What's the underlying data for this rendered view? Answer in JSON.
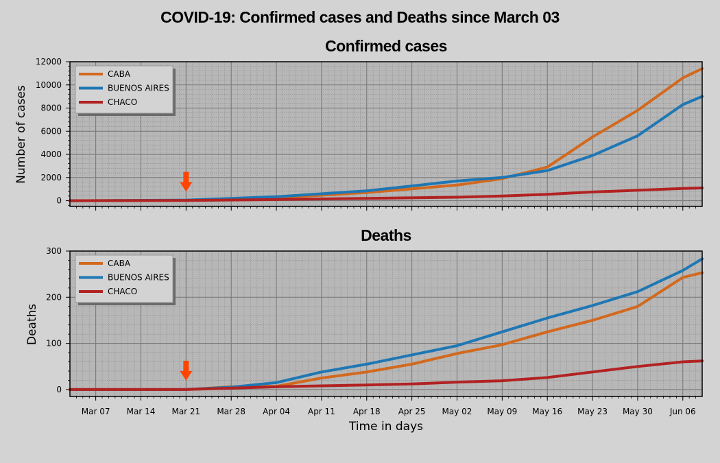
{
  "figure": {
    "title": "COVID-19: Confirmed cases and Deaths since March 03",
    "xlabel": "Time in days",
    "xticks": [
      "Mar 07",
      "Mar 14",
      "Mar 21",
      "Mar 28",
      "Apr 04",
      "Apr 11",
      "Apr 18",
      "Apr 25",
      "May 02",
      "May 09",
      "May 16",
      "May 23",
      "May 30",
      "Jun 06"
    ],
    "marker_date": "Mar 21",
    "marker_color": "#ff4500",
    "grid": true
  },
  "chart_data": [
    {
      "type": "line",
      "title": "Confirmed cases",
      "xlabel": "Time in days",
      "ylabel": "Number of cases",
      "ylim": [
        -500,
        12000
      ],
      "yticks": [
        0,
        2000,
        4000,
        6000,
        8000,
        10000,
        12000
      ],
      "legend": "top-left",
      "x_start": "Mar 03",
      "x_end": "Jun 09",
      "series": [
        {
          "name": "CABA",
          "color": "#d2691e",
          "dates": [
            "Mar 03",
            "Mar 21",
            "Apr 04",
            "Apr 18",
            "May 02",
            "May 09",
            "May 16",
            "May 23",
            "May 30",
            "Jun 06",
            "Jun 09"
          ],
          "values": [
            0,
            40,
            250,
            700,
            1350,
            1900,
            2900,
            5500,
            7800,
            10600,
            11400
          ]
        },
        {
          "name": "BUENOS AIRES",
          "color": "#1f77b4",
          "dates": [
            "Mar 03",
            "Mar 21",
            "Apr 04",
            "Apr 18",
            "May 02",
            "May 09",
            "May 16",
            "May 23",
            "May 30",
            "Jun 06",
            "Jun 09"
          ],
          "values": [
            0,
            50,
            350,
            850,
            1700,
            2000,
            2600,
            3900,
            5600,
            8300,
            9000
          ]
        },
        {
          "name": "CHACO",
          "color": "#b22222",
          "dates": [
            "Mar 03",
            "Mar 21",
            "Apr 04",
            "Apr 18",
            "May 02",
            "May 09",
            "May 16",
            "May 23",
            "May 30",
            "Jun 06",
            "Jun 09"
          ],
          "values": [
            0,
            20,
            100,
            200,
            300,
            400,
            550,
            750,
            900,
            1050,
            1100
          ]
        }
      ]
    },
    {
      "type": "line",
      "title": "Deaths",
      "xlabel": "Time in days",
      "ylabel": "Deaths",
      "ylim": [
        -15,
        300
      ],
      "yticks": [
        0,
        100,
        200,
        300
      ],
      "legend": "top-left",
      "x_start": "Mar 03",
      "x_end": "Jun 09",
      "series": [
        {
          "name": "CABA",
          "color": "#d2691e",
          "dates": [
            "Mar 03",
            "Mar 21",
            "Mar 28",
            "Apr 04",
            "Apr 11",
            "Apr 18",
            "Apr 25",
            "May 02",
            "May 09",
            "May 16",
            "May 23",
            "May 30",
            "Jun 06",
            "Jun 09"
          ],
          "values": [
            0,
            0,
            6,
            7,
            25,
            38,
            55,
            78,
            97,
            125,
            150,
            180,
            243,
            253
          ]
        },
        {
          "name": "BUENOS AIRES",
          "color": "#1f77b4",
          "dates": [
            "Mar 03",
            "Mar 21",
            "Mar 28",
            "Apr 04",
            "Apr 11",
            "Apr 18",
            "Apr 25",
            "May 02",
            "May 09",
            "May 16",
            "May 23",
            "May 30",
            "Jun 06",
            "Jun 09"
          ],
          "values": [
            0,
            0,
            5,
            15,
            38,
            55,
            75,
            95,
            125,
            155,
            182,
            212,
            258,
            283
          ]
        },
        {
          "name": "CHACO",
          "color": "#b22222",
          "dates": [
            "Mar 03",
            "Mar 21",
            "Mar 28",
            "Apr 04",
            "Apr 11",
            "Apr 18",
            "Apr 25",
            "May 02",
            "May 09",
            "May 16",
            "May 23",
            "May 30",
            "Jun 06",
            "Jun 09"
          ],
          "values": [
            0,
            0,
            3,
            6,
            8,
            10,
            12,
            16,
            19,
            26,
            38,
            50,
            60,
            62
          ]
        }
      ]
    }
  ]
}
